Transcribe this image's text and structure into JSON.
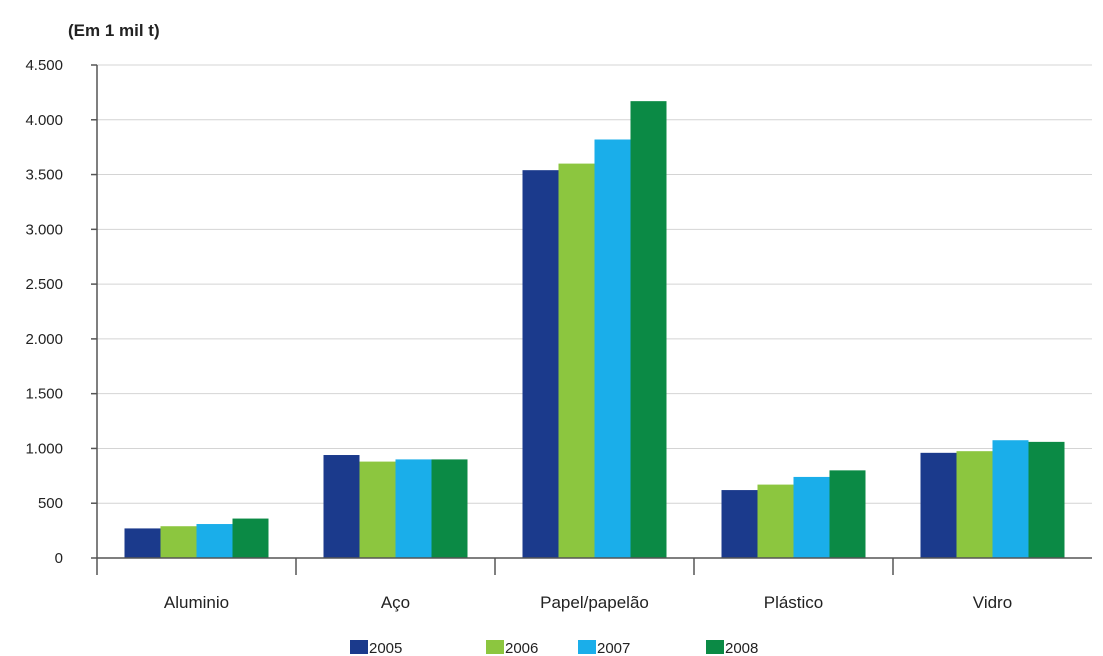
{
  "chart_data": {
    "type": "bar",
    "unit_label": "(Em 1 mil t)",
    "categories": [
      "Aluminio",
      "Aço",
      "Papel/papelão",
      "Plástico",
      "Vidro"
    ],
    "series": [
      {
        "name": "2005",
        "color": "#1b3a8c",
        "values": [
          270,
          940,
          3540,
          620,
          960
        ]
      },
      {
        "name": "2006",
        "color": "#8cc63f",
        "values": [
          290,
          880,
          3600,
          670,
          975
        ]
      },
      {
        "name": "2007",
        "color": "#1aaeea",
        "values": [
          310,
          900,
          3820,
          740,
          1075
        ]
      },
      {
        "name": "2008",
        "color": "#0b8a45",
        "values": [
          360,
          900,
          4170,
          800,
          1060
        ]
      }
    ],
    "ylim": [
      0,
      4500
    ],
    "yticks": [
      0,
      500,
      1000,
      1500,
      2000,
      2500,
      3000,
      3500,
      4000,
      4500
    ],
    "ytick_labels": [
      "0",
      "500",
      "1.000",
      "1.500",
      "2.000",
      "2.500",
      "3.000",
      "3.500",
      "4.000",
      "4.500"
    ],
    "grid": true,
    "legend_position": "bottom"
  }
}
